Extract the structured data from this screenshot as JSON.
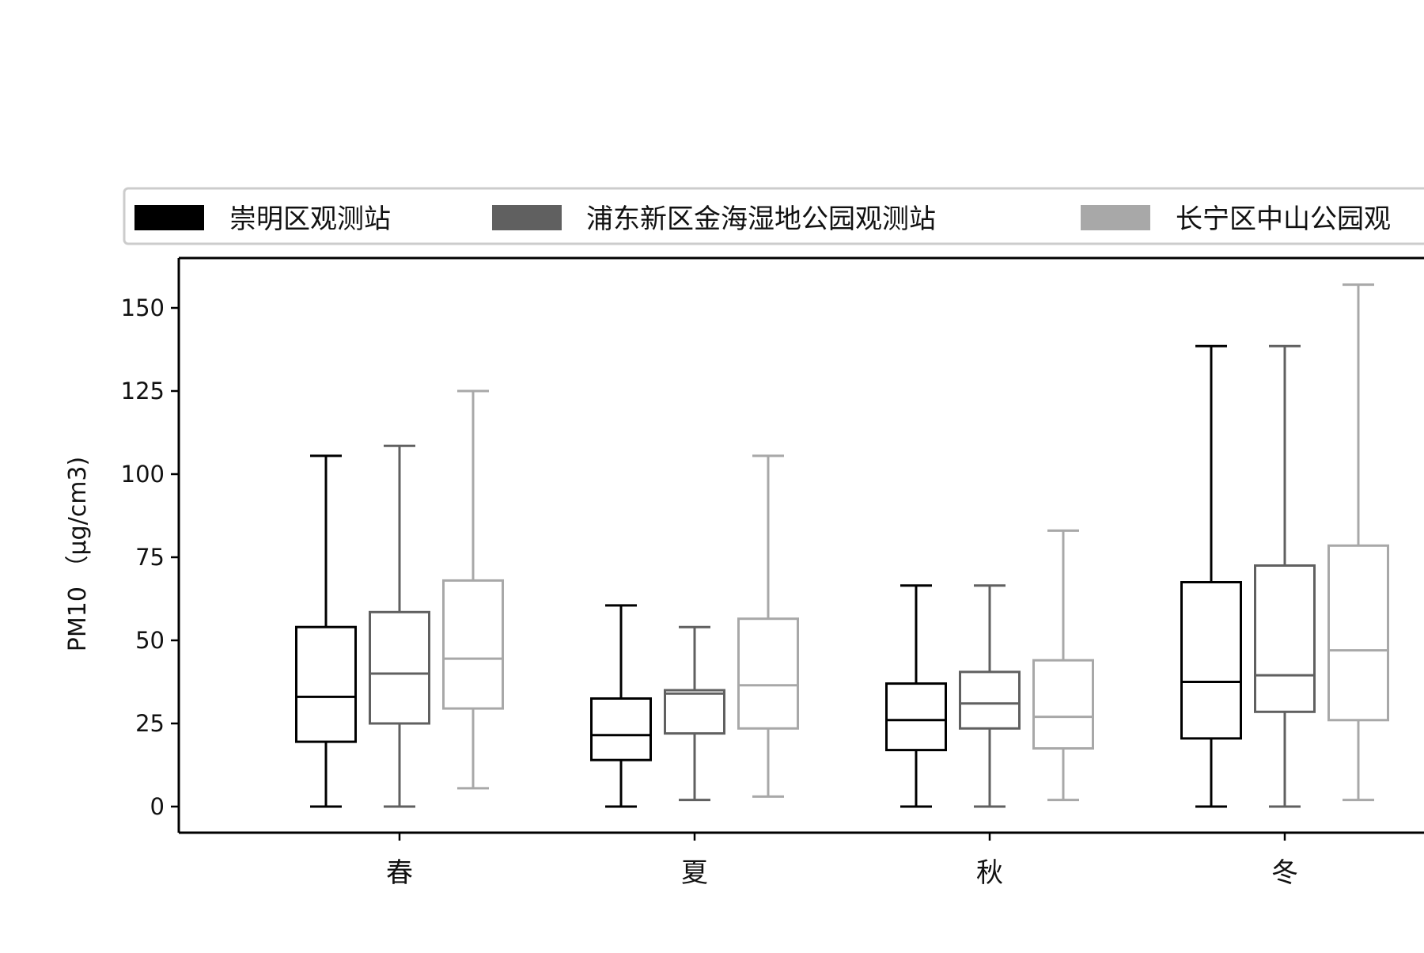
{
  "chart_data": {
    "type": "box",
    "categories": [
      "春",
      "夏",
      "秋",
      "冬"
    ],
    "ylabel": "PM10 （μg/cm3)",
    "ylim": [
      -8,
      165
    ],
    "yticks": [
      0,
      25,
      50,
      75,
      100,
      125,
      150
    ],
    "grid": false,
    "legend_position": "top",
    "series": [
      {
        "name": "崇明区观测站",
        "color": "#000000",
        "boxes": [
          {
            "whisker_low": 0,
            "q1": 19.5,
            "median": 33,
            "q3": 54,
            "whisker_high": 105.5
          },
          {
            "whisker_low": 0,
            "q1": 14,
            "median": 21.5,
            "q3": 32.5,
            "whisker_high": 60.5
          },
          {
            "whisker_low": 0,
            "q1": 17,
            "median": 26,
            "q3": 37,
            "whisker_high": 66.5
          },
          {
            "whisker_low": 0,
            "q1": 20.5,
            "median": 37.5,
            "q3": 67.5,
            "whisker_high": 138.5
          }
        ]
      },
      {
        "name": "浦东新区金海湿地公园观测站",
        "color": "#606060",
        "boxes": [
          {
            "whisker_low": 0,
            "q1": 25,
            "median": 40,
            "q3": 58.5,
            "whisker_high": 108.5
          },
          {
            "whisker_low": 2,
            "q1": 22,
            "median": 34,
            "q3": 35,
            "whisker_high": 54
          },
          {
            "whisker_low": 0,
            "q1": 23.5,
            "median": 31,
            "q3": 40.5,
            "whisker_high": 66.5
          },
          {
            "whisker_low": 0,
            "q1": 28.5,
            "median": 39.5,
            "q3": 72.5,
            "whisker_high": 138.5
          }
        ]
      },
      {
        "name": "长宁区中山公园观",
        "color": "#a8a8a8",
        "boxes": [
          {
            "whisker_low": 5.5,
            "q1": 29.5,
            "median": 44.5,
            "q3": 68,
            "whisker_high": 125
          },
          {
            "whisker_low": 3,
            "q1": 23.5,
            "median": 36.5,
            "q3": 56.5,
            "whisker_high": 105.5
          },
          {
            "whisker_low": 2,
            "q1": 17.5,
            "median": 27,
            "q3": 44,
            "whisker_high": 83
          },
          {
            "whisker_low": 2,
            "q1": 26,
            "median": 47,
            "q3": 78.5,
            "whisker_high": 157
          }
        ]
      }
    ]
  }
}
